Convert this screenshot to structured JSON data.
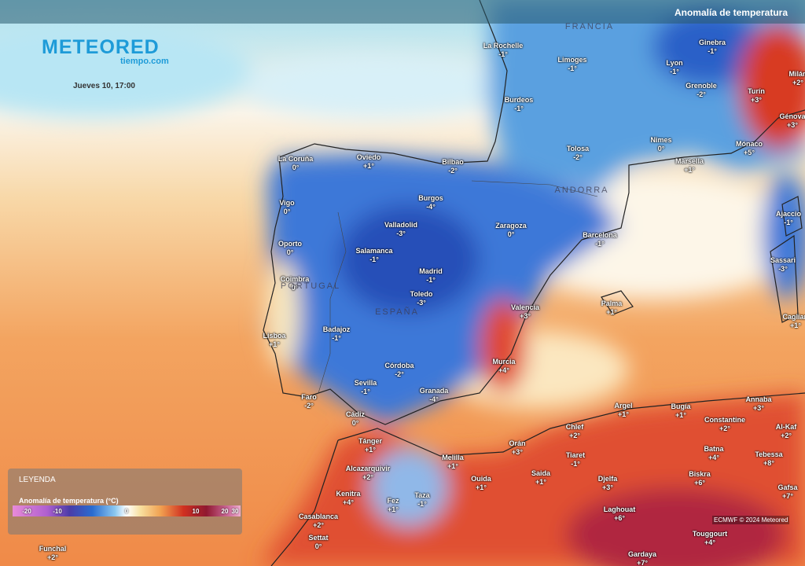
{
  "header": {
    "title": "Anomalía de temperatura",
    "logo": "METEORED",
    "logo_sub": "tiempo.com",
    "datetime": "Jueves 10, 17:00"
  },
  "legend": {
    "heading": "LEYENDA",
    "title": "Anomalía de temperatura (°C)",
    "scale": [
      "-20",
      "-10",
      "0",
      "10",
      "20",
      "30"
    ]
  },
  "credit": "ECMWF © 2024 Meteored",
  "countries": [
    "FRANCIA",
    "ANDORRA",
    "PORTUGAL",
    "ESPAÑA"
  ],
  "cities": [
    {
      "name": "La Rochelle",
      "anomaly": "-1°"
    },
    {
      "name": "Limoges",
      "anomaly": "-1°"
    },
    {
      "name": "Lyon",
      "anomaly": "-1°"
    },
    {
      "name": "Ginebra",
      "anomaly": "-1°"
    },
    {
      "name": "Milán",
      "anomaly": "+2°"
    },
    {
      "name": "Turín",
      "anomaly": "+3°"
    },
    {
      "name": "Grenoble",
      "anomaly": "-2°"
    },
    {
      "name": "Burdeos",
      "anomaly": "-1°"
    },
    {
      "name": "Génova",
      "anomaly": "+3°"
    },
    {
      "name": "Nimes",
      "anomaly": "0°"
    },
    {
      "name": "Mónaco",
      "anomaly": "+5°"
    },
    {
      "name": "Tolosa",
      "anomaly": "-2°"
    },
    {
      "name": "Marsella",
      "anomaly": "+1°"
    },
    {
      "name": "La Coruña",
      "anomaly": "0°"
    },
    {
      "name": "Oviedo",
      "anomaly": "+1°"
    },
    {
      "name": "Bilbao",
      "anomaly": "-2°"
    },
    {
      "name": "Burgos",
      "anomaly": "-4°"
    },
    {
      "name": "Vigo",
      "anomaly": "0°"
    },
    {
      "name": "Valladolid",
      "anomaly": "-3°"
    },
    {
      "name": "Zaragoza",
      "anomaly": "0°"
    },
    {
      "name": "Barcelona",
      "anomaly": "-1°"
    },
    {
      "name": "Ajaccio",
      "anomaly": "-1°"
    },
    {
      "name": "Oporto",
      "anomaly": "0°"
    },
    {
      "name": "Salamanca",
      "anomaly": "-1°"
    },
    {
      "name": "Sassari",
      "anomaly": "-3°"
    },
    {
      "name": "Madrid",
      "anomaly": "-1°"
    },
    {
      "name": "Coimbra",
      "anomaly": "0°"
    },
    {
      "name": "Toledo",
      "anomaly": "-3°"
    },
    {
      "name": "Valencia",
      "anomaly": "+3°"
    },
    {
      "name": "Palma",
      "anomaly": "+1°"
    },
    {
      "name": "Cagliari",
      "anomaly": "+1°"
    },
    {
      "name": "Lisboa",
      "anomaly": "+1°"
    },
    {
      "name": "Badajoz",
      "anomaly": "-1°"
    },
    {
      "name": "Murcia",
      "anomaly": "+4°"
    },
    {
      "name": "Córdoba",
      "anomaly": "-2°"
    },
    {
      "name": "Sevilla",
      "anomaly": "-1°"
    },
    {
      "name": "Granada",
      "anomaly": "-4°"
    },
    {
      "name": "Faro",
      "anomaly": "-2°"
    },
    {
      "name": "Cádiz",
      "anomaly": "0°"
    },
    {
      "name": "Argel",
      "anomaly": "+1°"
    },
    {
      "name": "Bugía",
      "anomaly": "+1°"
    },
    {
      "name": "Annaba",
      "anomaly": "+3°"
    },
    {
      "name": "Constantine",
      "anomaly": "+2°"
    },
    {
      "name": "Al-Kaf",
      "anomaly": "+2°"
    },
    {
      "name": "Chlef",
      "anomaly": "+2°"
    },
    {
      "name": "Tánger",
      "anomaly": "+1°"
    },
    {
      "name": "Orán",
      "anomaly": "+3°"
    },
    {
      "name": "Melilla",
      "anomaly": "+1°"
    },
    {
      "name": "Tiaret",
      "anomaly": "-1°"
    },
    {
      "name": "Batna",
      "anomaly": "+4°"
    },
    {
      "name": "Tebessa",
      "anomaly": "+8°"
    },
    {
      "name": "Alcazarquivir",
      "anomaly": "+2°"
    },
    {
      "name": "Saida",
      "anomaly": "+1°"
    },
    {
      "name": "Ouida",
      "anomaly": "+1°"
    },
    {
      "name": "Djelfa",
      "anomaly": "+3°"
    },
    {
      "name": "Biskra",
      "anomaly": "+6°"
    },
    {
      "name": "Gafsa",
      "anomaly": "+7°"
    },
    {
      "name": "Kenitra",
      "anomaly": "+4°"
    },
    {
      "name": "Taza",
      "anomaly": "-1°"
    },
    {
      "name": "Fez",
      "anomaly": "+1°"
    },
    {
      "name": "Laghouat",
      "anomaly": "+6°"
    },
    {
      "name": "Casablanca",
      "anomaly": "+2°"
    },
    {
      "name": "Settat",
      "anomaly": "0°"
    },
    {
      "name": "Touggourt",
      "anomaly": "+4°"
    },
    {
      "name": "Funchal",
      "anomaly": "+2°"
    },
    {
      "name": "Gardaya",
      "anomaly": "+7°"
    }
  ]
}
